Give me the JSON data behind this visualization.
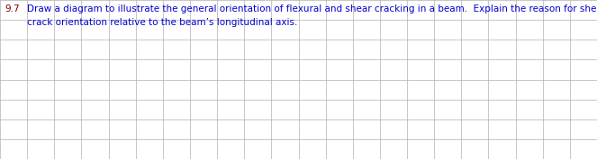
{
  "number": "9.7",
  "line1": "Draw a diagram to illustrate the general orientation of flexural and shear cracking in a beam.  Explain the reason for shear",
  "line2": "crack orientation relative to the beam’s longitudinal axis.",
  "number_color": "#800000",
  "text_color": "#0000cc",
  "bg_color": "#ffffff",
  "grid_color": "#b0b0b0",
  "grid_cols": 22,
  "grid_rows": 8,
  "font_size": 7.5,
  "fig_width": 6.63,
  "fig_height": 1.77,
  "dpi": 100
}
